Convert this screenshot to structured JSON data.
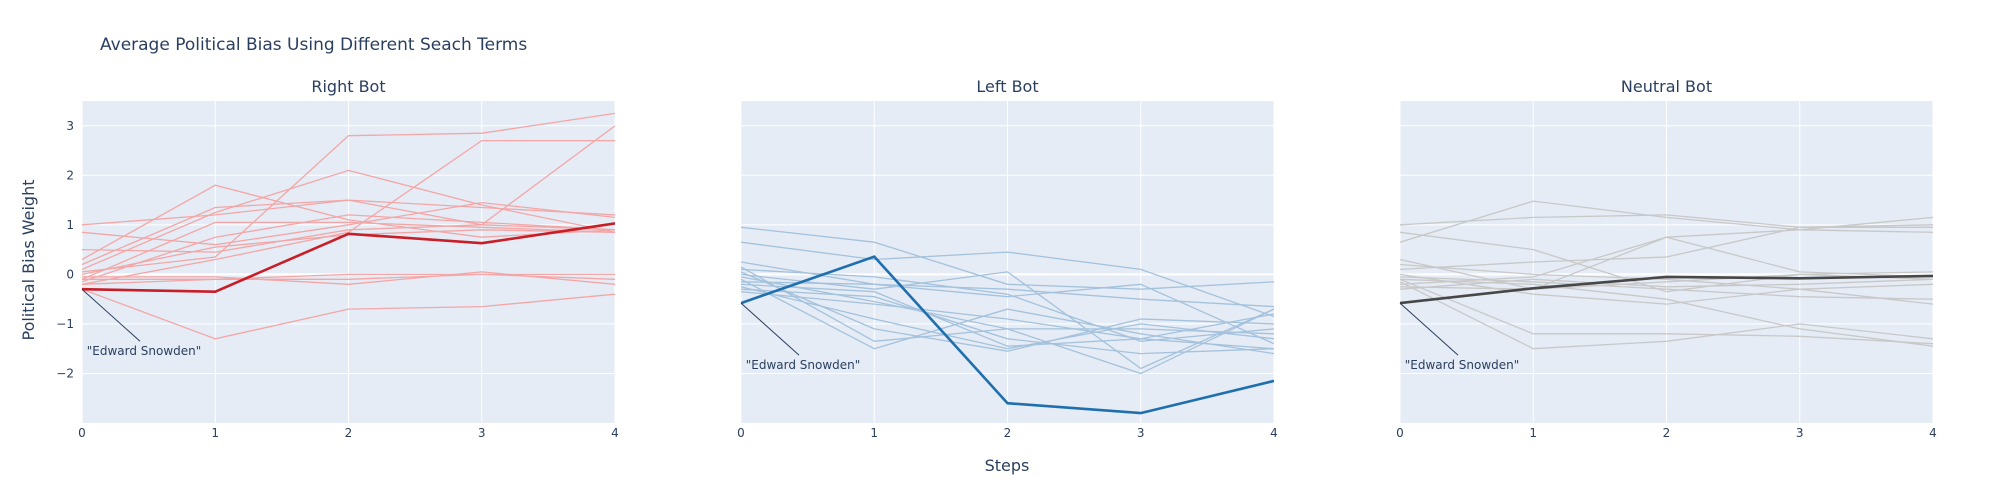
{
  "chart_data": {
    "type": "line",
    "title": "Average Political Bias Using Different Seach Terms",
    "xlabel": "Steps",
    "ylabel": "Political Bias Weight",
    "x": [
      0,
      1,
      2,
      3,
      4
    ],
    "xticks": [
      "0",
      "1",
      "2",
      "3",
      "4"
    ],
    "ylim": [
      -3,
      3.5
    ],
    "yticks": [
      -2,
      -1,
      0,
      1,
      2,
      3
    ],
    "ytick_labels": [
      "−2",
      "−1",
      "0",
      "1",
      "2",
      "3"
    ],
    "grid": true,
    "panels": [
      {
        "title": "Right Bot",
        "background_color": "#f4a6a6",
        "highlight_color": "#c81e28",
        "annotation": {
          "text": "\"Edward Snowden\"",
          "x": 0,
          "y": -0.3
        },
        "highlight": {
          "values": [
            -0.3,
            -0.35,
            0.82,
            0.63,
            1.03
          ]
        },
        "background_series": [
          [
            0.85,
            0.6,
            1.0,
            1.45,
            1.15
          ],
          [
            1.0,
            1.2,
            1.5,
            1.35,
            1.2
          ],
          [
            0.2,
            1.35,
            1.5,
            1.0,
            0.9
          ],
          [
            0.1,
            1.25,
            2.1,
            1.4,
            0.85
          ],
          [
            0.3,
            1.8,
            1.1,
            0.75,
            0.9
          ],
          [
            -0.1,
            1.05,
            1.05,
            0.95,
            0.85
          ],
          [
            0.05,
            0.35,
            2.8,
            2.85,
            3.25
          ],
          [
            -0.2,
            0.3,
            0.85,
            2.7,
            2.7
          ],
          [
            0.5,
            0.45,
            0.9,
            1.0,
            3.0
          ],
          [
            -0.05,
            -0.05,
            -0.2,
            0.05,
            -0.2
          ],
          [
            -0.1,
            -0.1,
            0.0,
            0.0,
            0.0
          ],
          [
            0.0,
            0.55,
            0.8,
            0.9,
            0.85
          ],
          [
            -0.15,
            0.75,
            1.2,
            1.05,
            0.9
          ],
          [
            -0.3,
            -1.3,
            -0.7,
            -0.65,
            -0.4
          ],
          [
            -0.2,
            -0.1,
            -0.1,
            0.0,
            -0.1
          ]
        ]
      },
      {
        "title": "Left Bot",
        "background_color": "#a4c2dc",
        "highlight_color": "#1f6fae",
        "annotation": {
          "text": "\"Edward Snowden\"",
          "x": 0,
          "y": -0.58
        },
        "highlight": {
          "values": [
            -0.58,
            0.36,
            -2.6,
            -2.8,
            -2.15
          ]
        },
        "background_series": [
          [
            0.95,
            0.65,
            -0.2,
            -0.3,
            -0.15
          ],
          [
            0.65,
            0.3,
            0.45,
            0.1,
            -0.85
          ],
          [
            0.25,
            -0.2,
            -0.45,
            -0.2,
            -1.4
          ],
          [
            0.1,
            -0.05,
            -0.4,
            -1.35,
            -1.1
          ],
          [
            0.0,
            -0.3,
            0.05,
            -1.9,
            -0.7
          ],
          [
            -0.05,
            -0.55,
            -1.1,
            -2.0,
            -0.7
          ],
          [
            -0.1,
            -1.5,
            -0.7,
            -1.2,
            -1.6
          ],
          [
            -0.2,
            -0.35,
            -1.45,
            -1.3,
            -1.5
          ],
          [
            -0.25,
            -0.9,
            -1.5,
            -1.0,
            -1.3
          ],
          [
            0.15,
            -1.35,
            -1.1,
            -1.1,
            -1.2
          ],
          [
            -0.3,
            -0.45,
            -1.3,
            -1.6,
            -1.5
          ],
          [
            -0.15,
            -0.2,
            -0.3,
            -0.5,
            -0.65
          ],
          [
            0.05,
            -1.1,
            -1.55,
            -0.9,
            -1.0
          ],
          [
            -0.35,
            -0.6,
            -0.9,
            -1.3,
            -0.8
          ]
        ]
      },
      {
        "title": "Neutral Bot",
        "background_color": "#c8c8c8",
        "highlight_color": "#474747",
        "annotation": {
          "text": "\"Edward Snowden\"",
          "x": 0,
          "y": -0.58
        },
        "highlight": {
          "values": [
            -0.58,
            -0.28,
            -0.05,
            -0.08,
            -0.03
          ]
        },
        "background_series": [
          [
            1.0,
            1.15,
            1.2,
            0.95,
            1.0
          ],
          [
            0.85,
            0.5,
            -0.35,
            0.0,
            0.05
          ],
          [
            0.65,
            1.48,
            1.15,
            0.9,
            0.85
          ],
          [
            0.3,
            -0.3,
            0.75,
            0.9,
            1.15
          ],
          [
            0.1,
            0.25,
            0.35,
            0.95,
            0.95
          ],
          [
            0.0,
            -0.4,
            -0.6,
            -0.3,
            -0.6
          ],
          [
            -0.05,
            -0.15,
            -0.3,
            -0.45,
            -0.5
          ],
          [
            -0.1,
            -1.2,
            -1.2,
            -1.25,
            -1.4
          ],
          [
            -0.15,
            -1.5,
            -1.35,
            -1.0,
            -1.3
          ],
          [
            -0.2,
            -0.05,
            0.75,
            0.05,
            -0.05
          ],
          [
            -0.3,
            -0.1,
            -0.25,
            -0.2,
            -0.1
          ],
          [
            0.2,
            0.0,
            -0.1,
            -0.3,
            -0.2
          ],
          [
            -0.25,
            -0.3,
            -0.15,
            0.0,
            -0.1
          ],
          [
            -0.1,
            -0.2,
            -0.5,
            -1.1,
            -1.45
          ]
        ]
      }
    ]
  }
}
